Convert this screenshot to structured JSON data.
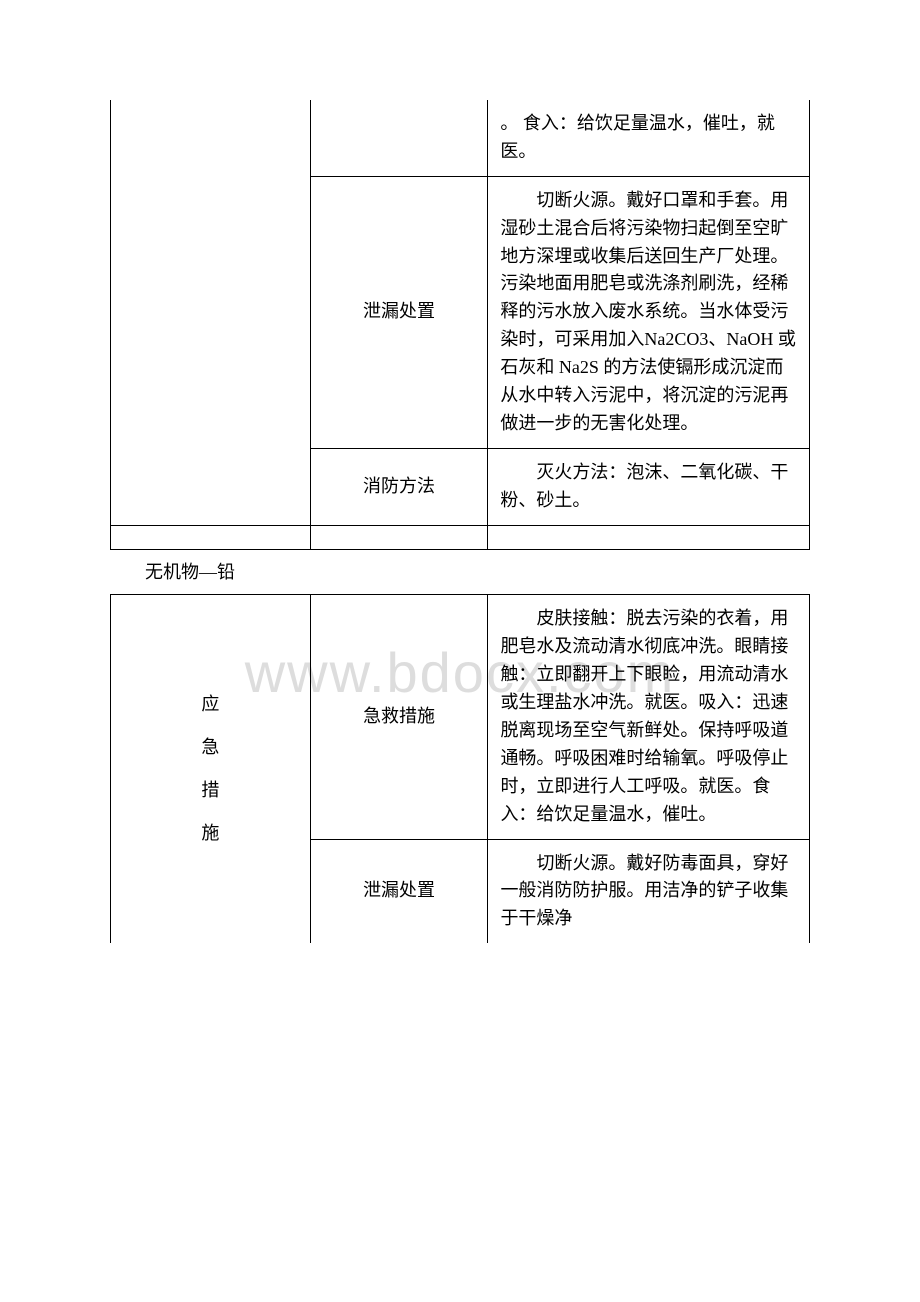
{
  "table1": {
    "cell_partial": "。 食入：给饮足量温水，催吐，就医。",
    "row2_label": "泄漏处置",
    "row2_content": "切断火源。戴好口罩和手套。用湿砂土混合后将污染物扫起倒至空旷地方深埋或收集后送回生产厂处理。污染地面用肥皂或洗涤剂刷洗，经稀释的污水放入废水系统。当水体受污染时，可采用加入Na2CO3、NaOH 或石灰和 Na2S 的方法使镉形成沉淀而从水中转入污泥中，将沉淀的污泥再做进一步的无害化处理。",
    "row3_label": "消防方法",
    "row3_content": "灭火方法：泡沫、二氧化碳、干粉、砂土。"
  },
  "section_heading": "无机物—铅",
  "table2": {
    "left_label": "应\n急\n措\n施",
    "row1_label": "急救措施",
    "row1_content": "皮肤接触：脱去污染的衣着，用肥皂水及流动清水彻底冲洗。眼睛接触：立即翻开上下眼睑，用流动清水或生理盐水冲洗。就医。吸入：迅速脱离现场至空气新鲜处。保持呼吸道通畅。呼吸困难时给输氧。呼吸停止时，立即进行人工呼吸。就医。食入：给饮足量温水，催吐。",
    "row2_label": "泄漏处置",
    "row2_content": "切断火源。戴好防毒面具，穿好一般消防防护服。用洁净的铲子收集于干燥净"
  }
}
